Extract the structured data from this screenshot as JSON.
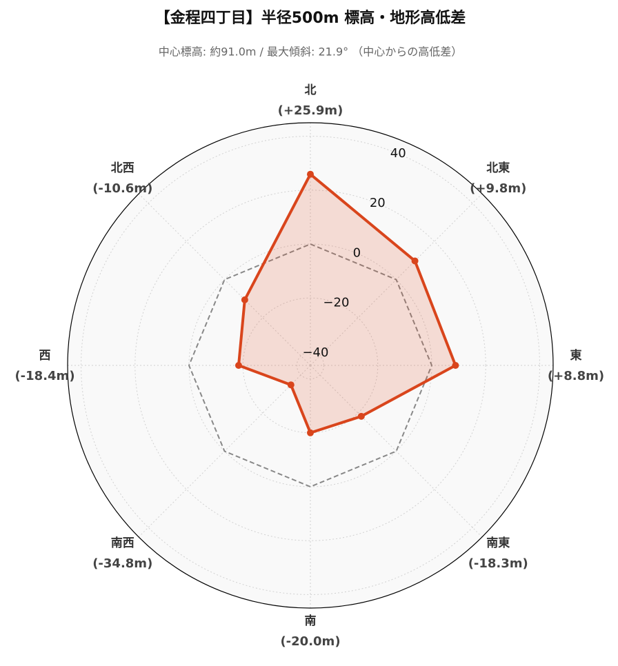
{
  "chart_data": {
    "type": "radar",
    "title": "【金程四丁目】半径500m 標高・地形高低差",
    "subtitle": "中心標高: 約91.0m / 最大傾斜: 21.9° （中心からの高低差）",
    "categories": [
      "北",
      "北東",
      "東",
      "南東",
      "南",
      "南西",
      "西",
      "北西"
    ],
    "values": [
      25.9,
      9.8,
      8.8,
      -18.3,
      -20.0,
      -34.8,
      -18.4,
      -10.6
    ],
    "value_labels": [
      "(+25.9m)",
      "(+9.8m)",
      "(+8.8m)",
      "(-18.3m)",
      "(-20.0m)",
      "(-34.8m)",
      "(-18.4m)",
      "(-10.6m)"
    ],
    "color": "#d9451c",
    "baseline": 0,
    "ylim": [
      -45,
      45
    ],
    "yticks": [
      {
        "value": -40,
        "label": "−40"
      },
      {
        "value": -20,
        "label": "−20"
      },
      0,
      20,
      40
    ],
    "grid": true
  }
}
